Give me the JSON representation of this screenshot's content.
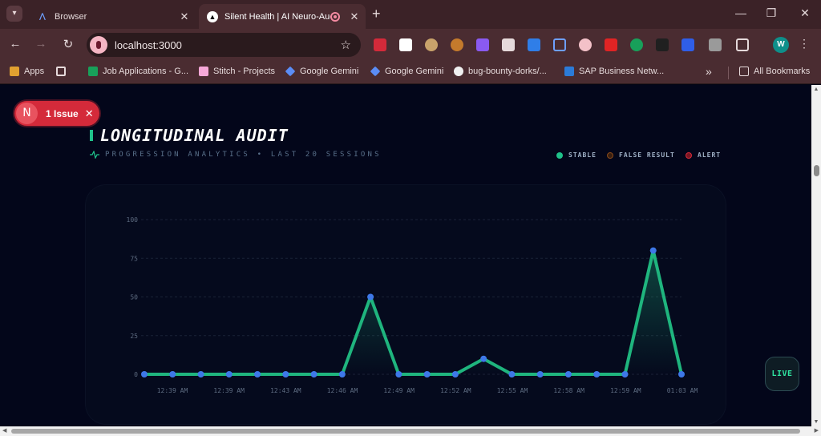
{
  "browser": {
    "tabs": [
      {
        "title": "Browser",
        "active": false
      },
      {
        "title": "Silent Health | AI Neuro-Audit",
        "active": true
      }
    ],
    "url": "localhost:3000",
    "profile_initial": "W",
    "bookmarks": [
      {
        "label": "Apps",
        "color": "#e0a030"
      },
      {
        "label": "Job Applications - G...",
        "color": "#18a05a"
      },
      {
        "label": "Stitch - Projects",
        "color": "#f6a8d8"
      },
      {
        "label": "Google Gemini",
        "color": "#5b8df6"
      },
      {
        "label": "Google Gemini",
        "color": "#5b8df6"
      },
      {
        "label": "bug-bounty-dorks/...",
        "color": "#f0f0f0"
      },
      {
        "label": "SAP Business Netw...",
        "color": "#2b7bd8"
      }
    ],
    "all_bookmarks": "All Bookmarks"
  },
  "issue": {
    "badge": "N",
    "label": "1 Issue"
  },
  "header": {
    "title": "LONGITUDINAL AUDIT",
    "subtitle": "PROGRESSION ANALYTICS • LAST 20 SESSIONS"
  },
  "legend": [
    {
      "label": "STABLE",
      "color": "#1fc18a"
    },
    {
      "label": "FALSE RESULT",
      "color": "#8a4a1a"
    },
    {
      "label": "ALERT",
      "color": "#d42a3a"
    }
  ],
  "live_label": "LIVE",
  "chart_data": {
    "type": "line",
    "title": "",
    "xlabel": "",
    "ylabel": "",
    "ylim": [
      0,
      100
    ],
    "yticks": [
      0,
      25,
      50,
      75,
      100
    ],
    "x_tick_labels": [
      "12:39 AM",
      "12:39 AM",
      "12:43 AM",
      "12:46 AM",
      "12:49 AM",
      "12:52 AM",
      "12:55 AM",
      "12:58 AM",
      "12:59 AM",
      "01:03 AM"
    ],
    "values": [
      0,
      0,
      0,
      0,
      0,
      0,
      0,
      0,
      50,
      0,
      0,
      0,
      10,
      0,
      0,
      0,
      0,
      0,
      80,
      0
    ],
    "line_color": "#1fb57e",
    "point_color": "#3e78e8",
    "grid": true
  }
}
